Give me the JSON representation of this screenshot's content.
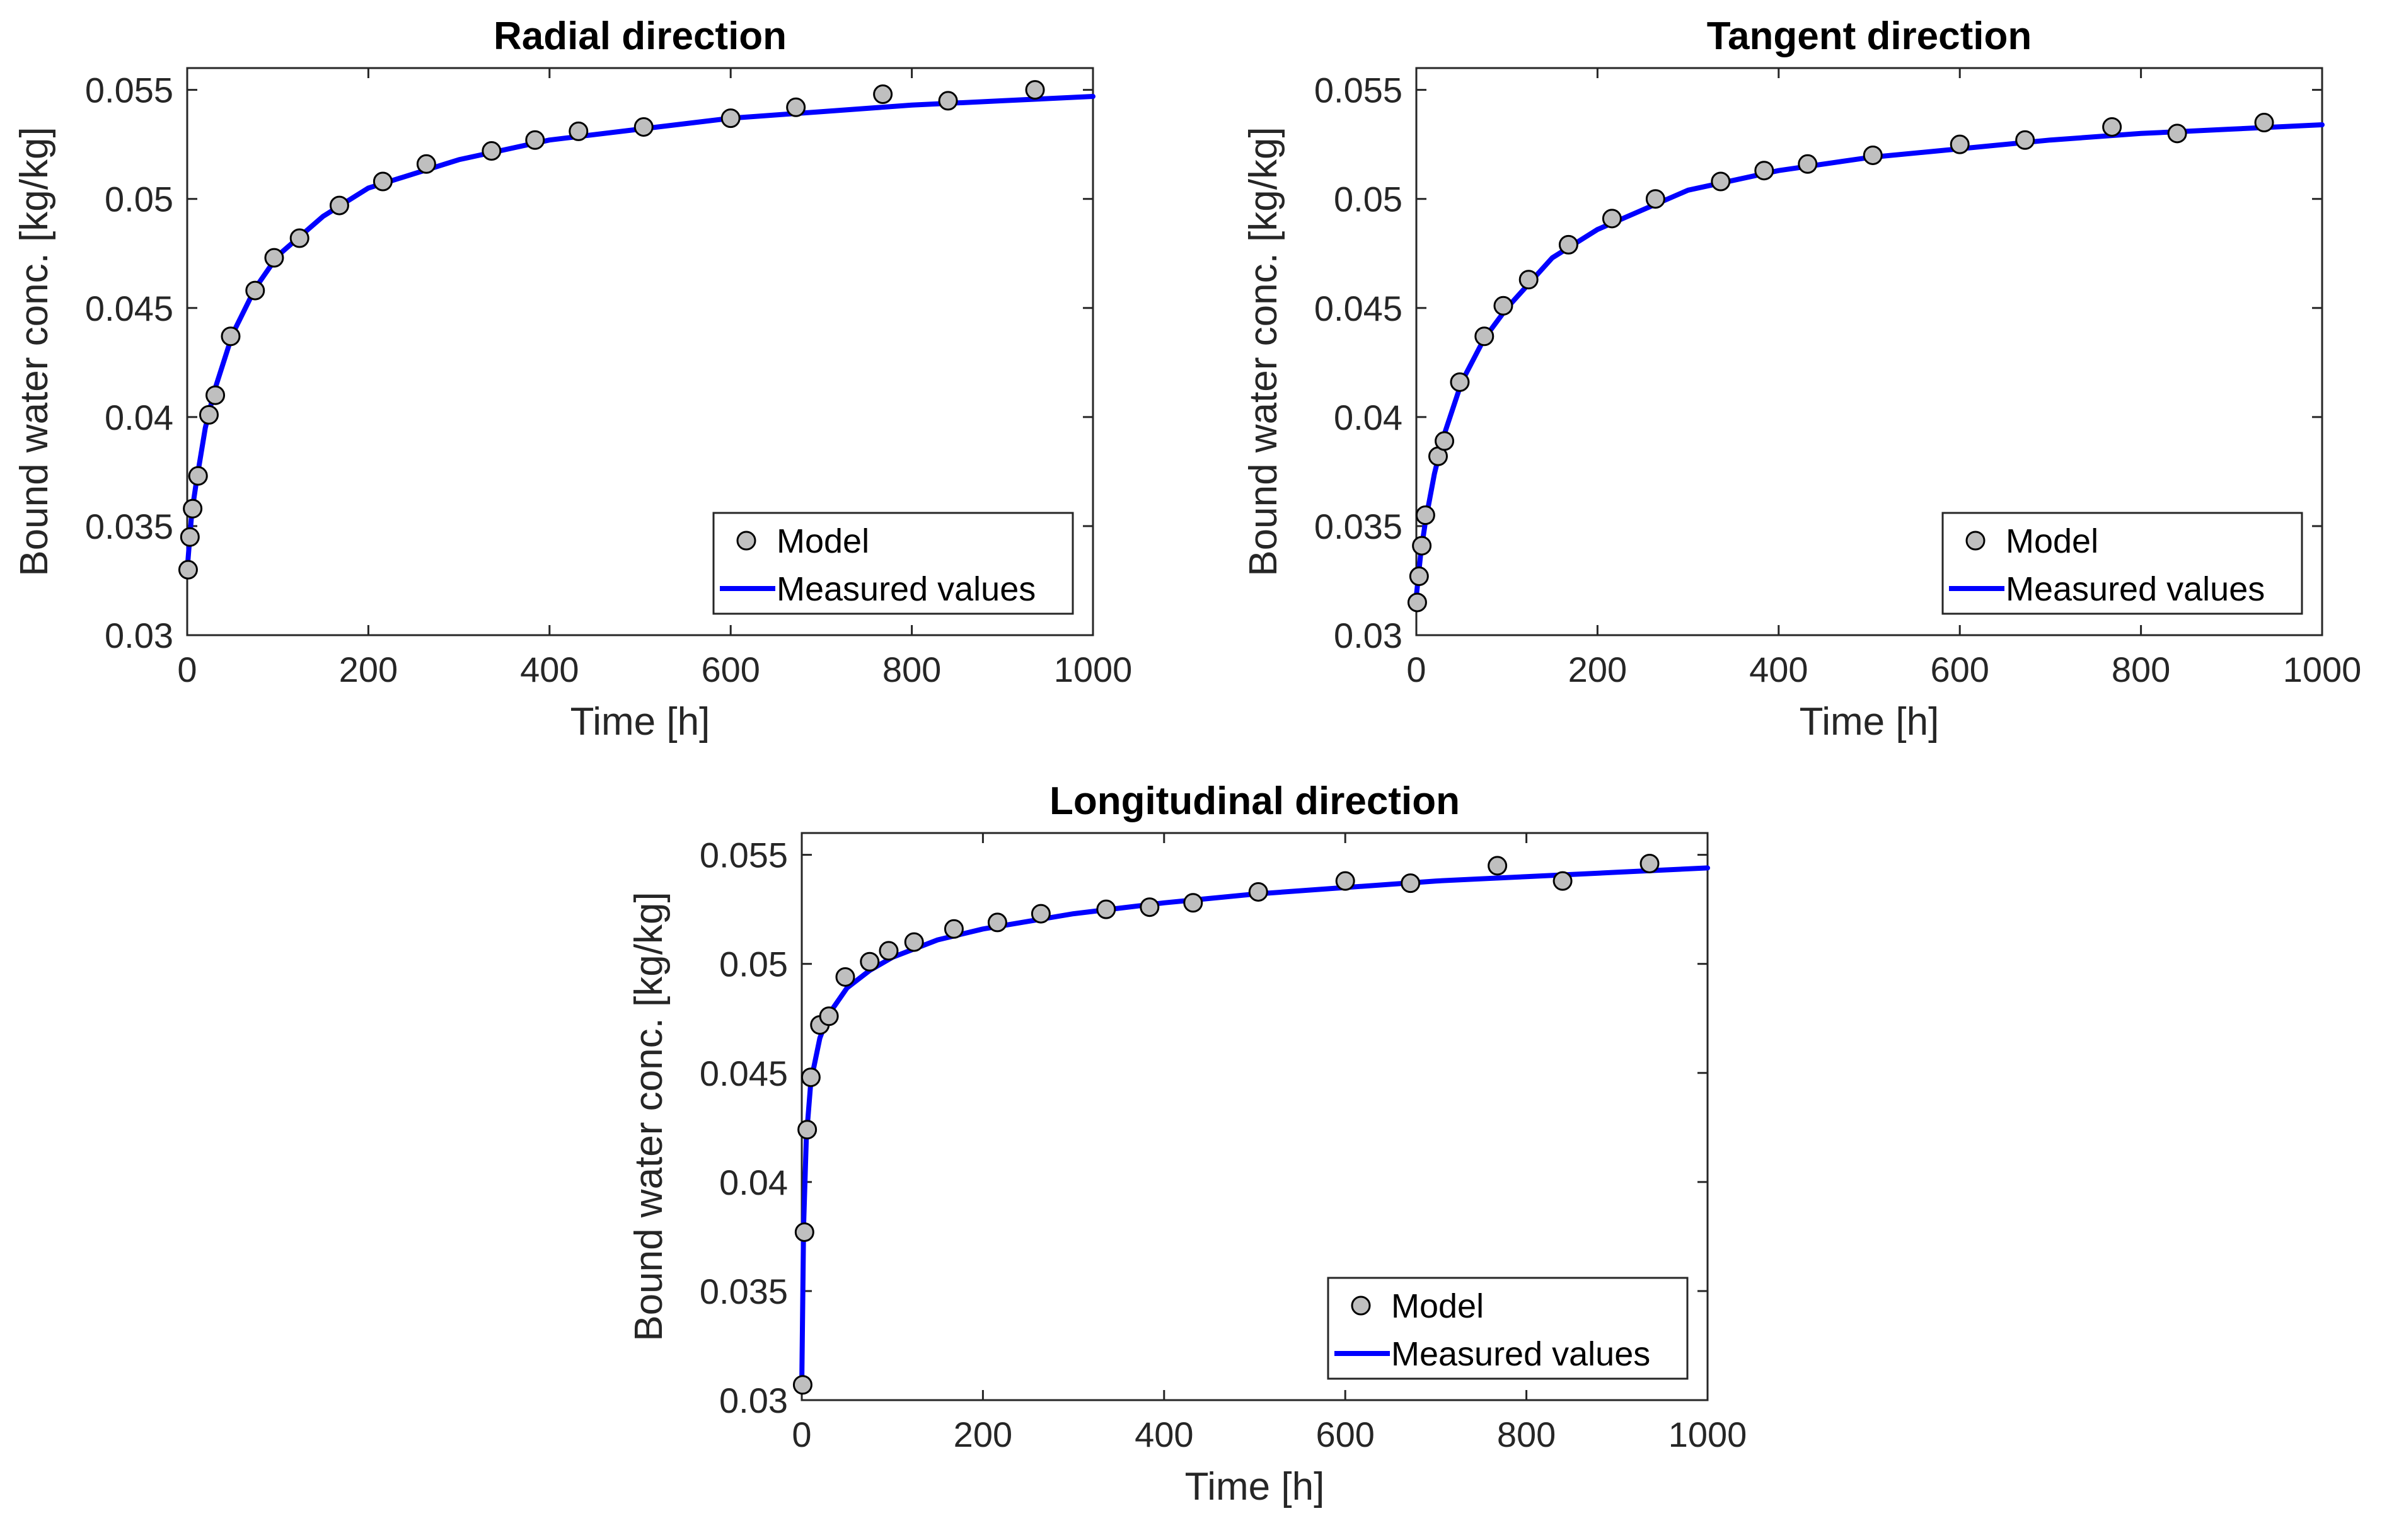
{
  "colors": {
    "line": "#0000ff",
    "marker_fill": "#bfbfbf",
    "marker_edge": "#000000",
    "axes": "#262626"
  },
  "chart_data": [
    {
      "type": "line",
      "title": "Radial direction",
      "xlabel": "Time [h]",
      "ylabel": "Bound water conc. [kg/kg]",
      "xlim": [
        0,
        1000
      ],
      "ylim": [
        0.03,
        0.056
      ],
      "xticks": [
        0,
        200,
        400,
        600,
        800,
        1000
      ],
      "xtick_labels": [
        "0",
        "200",
        "400",
        "600",
        "800",
        "1000"
      ],
      "yticks": [
        0.03,
        0.035,
        0.04,
        0.045,
        0.05,
        0.055
      ],
      "ytick_labels": [
        "0.03",
        "0.035",
        "0.04",
        "0.045",
        "0.05",
        "0.055"
      ],
      "legend": {
        "position": "bottom-right",
        "entries": [
          "Model",
          "Measured values"
        ]
      },
      "series": [
        {
          "name": "Model",
          "kind": "marker",
          "x": [
            1,
            3,
            6,
            12,
            24,
            31,
            48,
            75,
            96,
            124,
            168,
            216,
            264,
            336,
            384,
            432,
            504,
            600,
            672,
            768,
            840,
            936
          ],
          "y": [
            0.033,
            0.0345,
            0.0358,
            0.0373,
            0.0401,
            0.041,
            0.0437,
            0.0458,
            0.0473,
            0.0482,
            0.0497,
            0.0508,
            0.0516,
            0.0522,
            0.0527,
            0.0531,
            0.0533,
            0.0537,
            0.0542,
            0.0548,
            0.0545,
            0.055
          ]
        },
        {
          "name": "Measured values",
          "kind": "line",
          "x": [
            0,
            5,
            10,
            20,
            30,
            50,
            75,
            100,
            150,
            200,
            300,
            400,
            500,
            600,
            700,
            800,
            900,
            1000
          ],
          "y": [
            0.033,
            0.0356,
            0.037,
            0.0395,
            0.0412,
            0.0438,
            0.0459,
            0.0474,
            0.0492,
            0.0505,
            0.0518,
            0.0527,
            0.0532,
            0.0537,
            0.054,
            0.0543,
            0.0545,
            0.0547
          ]
        }
      ]
    },
    {
      "type": "line",
      "title": "Tangent direction",
      "xlabel": "Time [h]",
      "ylabel": "Bound water conc. [kg/kg]",
      "xlim": [
        0,
        1000
      ],
      "ylim": [
        0.03,
        0.056
      ],
      "xticks": [
        0,
        200,
        400,
        600,
        800,
        1000
      ],
      "xtick_labels": [
        "0",
        "200",
        "400",
        "600",
        "800",
        "1000"
      ],
      "yticks": [
        0.03,
        0.035,
        0.04,
        0.045,
        0.05,
        0.055
      ],
      "ytick_labels": [
        "0.03",
        "0.035",
        "0.04",
        "0.045",
        "0.05",
        "0.055"
      ],
      "legend": {
        "position": "bottom-right",
        "entries": [
          "Model",
          "Measured values"
        ]
      },
      "series": [
        {
          "name": "Model",
          "kind": "marker",
          "x": [
            1,
            3,
            6,
            10,
            24,
            31,
            48,
            75,
            96,
            124,
            168,
            216,
            264,
            336,
            384,
            432,
            504,
            600,
            672,
            768,
            840,
            936
          ],
          "y": [
            0.0315,
            0.0327,
            0.0341,
            0.0355,
            0.0382,
            0.0389,
            0.0416,
            0.0437,
            0.0451,
            0.0463,
            0.0479,
            0.0491,
            0.05,
            0.0508,
            0.0513,
            0.0516,
            0.052,
            0.0525,
            0.0527,
            0.0533,
            0.053,
            0.0535
          ]
        },
        {
          "name": "Measured values",
          "kind": "line",
          "x": [
            0,
            5,
            10,
            20,
            30,
            50,
            75,
            100,
            150,
            200,
            300,
            400,
            500,
            600,
            700,
            800,
            900,
            1000
          ],
          "y": [
            0.0318,
            0.0338,
            0.0352,
            0.0374,
            0.0391,
            0.0416,
            0.0436,
            0.045,
            0.0473,
            0.0486,
            0.0504,
            0.0513,
            0.0519,
            0.0523,
            0.0527,
            0.053,
            0.0532,
            0.0534
          ]
        }
      ]
    },
    {
      "type": "line",
      "title": "Longitudinal direction",
      "xlabel": "Time [h]",
      "ylabel": "Bound water conc. [kg/kg]",
      "xlim": [
        0,
        1000
      ],
      "ylim": [
        0.03,
        0.056
      ],
      "xticks": [
        0,
        200,
        400,
        600,
        800,
        1000
      ],
      "xtick_labels": [
        "0",
        "200",
        "400",
        "600",
        "800",
        "1000"
      ],
      "yticks": [
        0.03,
        0.035,
        0.04,
        0.045,
        0.05,
        0.055
      ],
      "ytick_labels": [
        "0.03",
        "0.035",
        "0.04",
        "0.045",
        "0.05",
        "0.055"
      ],
      "legend": {
        "position": "bottom-right",
        "entries": [
          "Model",
          "Measured values"
        ]
      },
      "series": [
        {
          "name": "Model",
          "kind": "marker",
          "x": [
            1,
            3,
            6,
            10,
            20,
            30,
            48,
            75,
            96,
            124,
            168,
            216,
            264,
            336,
            384,
            432,
            504,
            600,
            672,
            768,
            840,
            936
          ],
          "y": [
            0.0307,
            0.0377,
            0.0424,
            0.0448,
            0.0472,
            0.0476,
            0.0494,
            0.0501,
            0.0506,
            0.051,
            0.0516,
            0.0519,
            0.0523,
            0.0525,
            0.0526,
            0.0528,
            0.0533,
            0.0538,
            0.0537,
            0.0545,
            0.0538,
            0.0546
          ]
        },
        {
          "name": "Measured values",
          "kind": "line",
          "x": [
            0,
            2,
            5,
            10,
            20,
            30,
            50,
            75,
            100,
            150,
            200,
            300,
            400,
            500,
            600,
            700,
            800,
            900,
            1000
          ],
          "y": [
            0.0307,
            0.038,
            0.042,
            0.0446,
            0.0466,
            0.0477,
            0.0489,
            0.0497,
            0.0503,
            0.0511,
            0.0516,
            0.0523,
            0.0528,
            0.0532,
            0.0535,
            0.0538,
            0.054,
            0.0542,
            0.0544
          ]
        }
      ]
    }
  ]
}
